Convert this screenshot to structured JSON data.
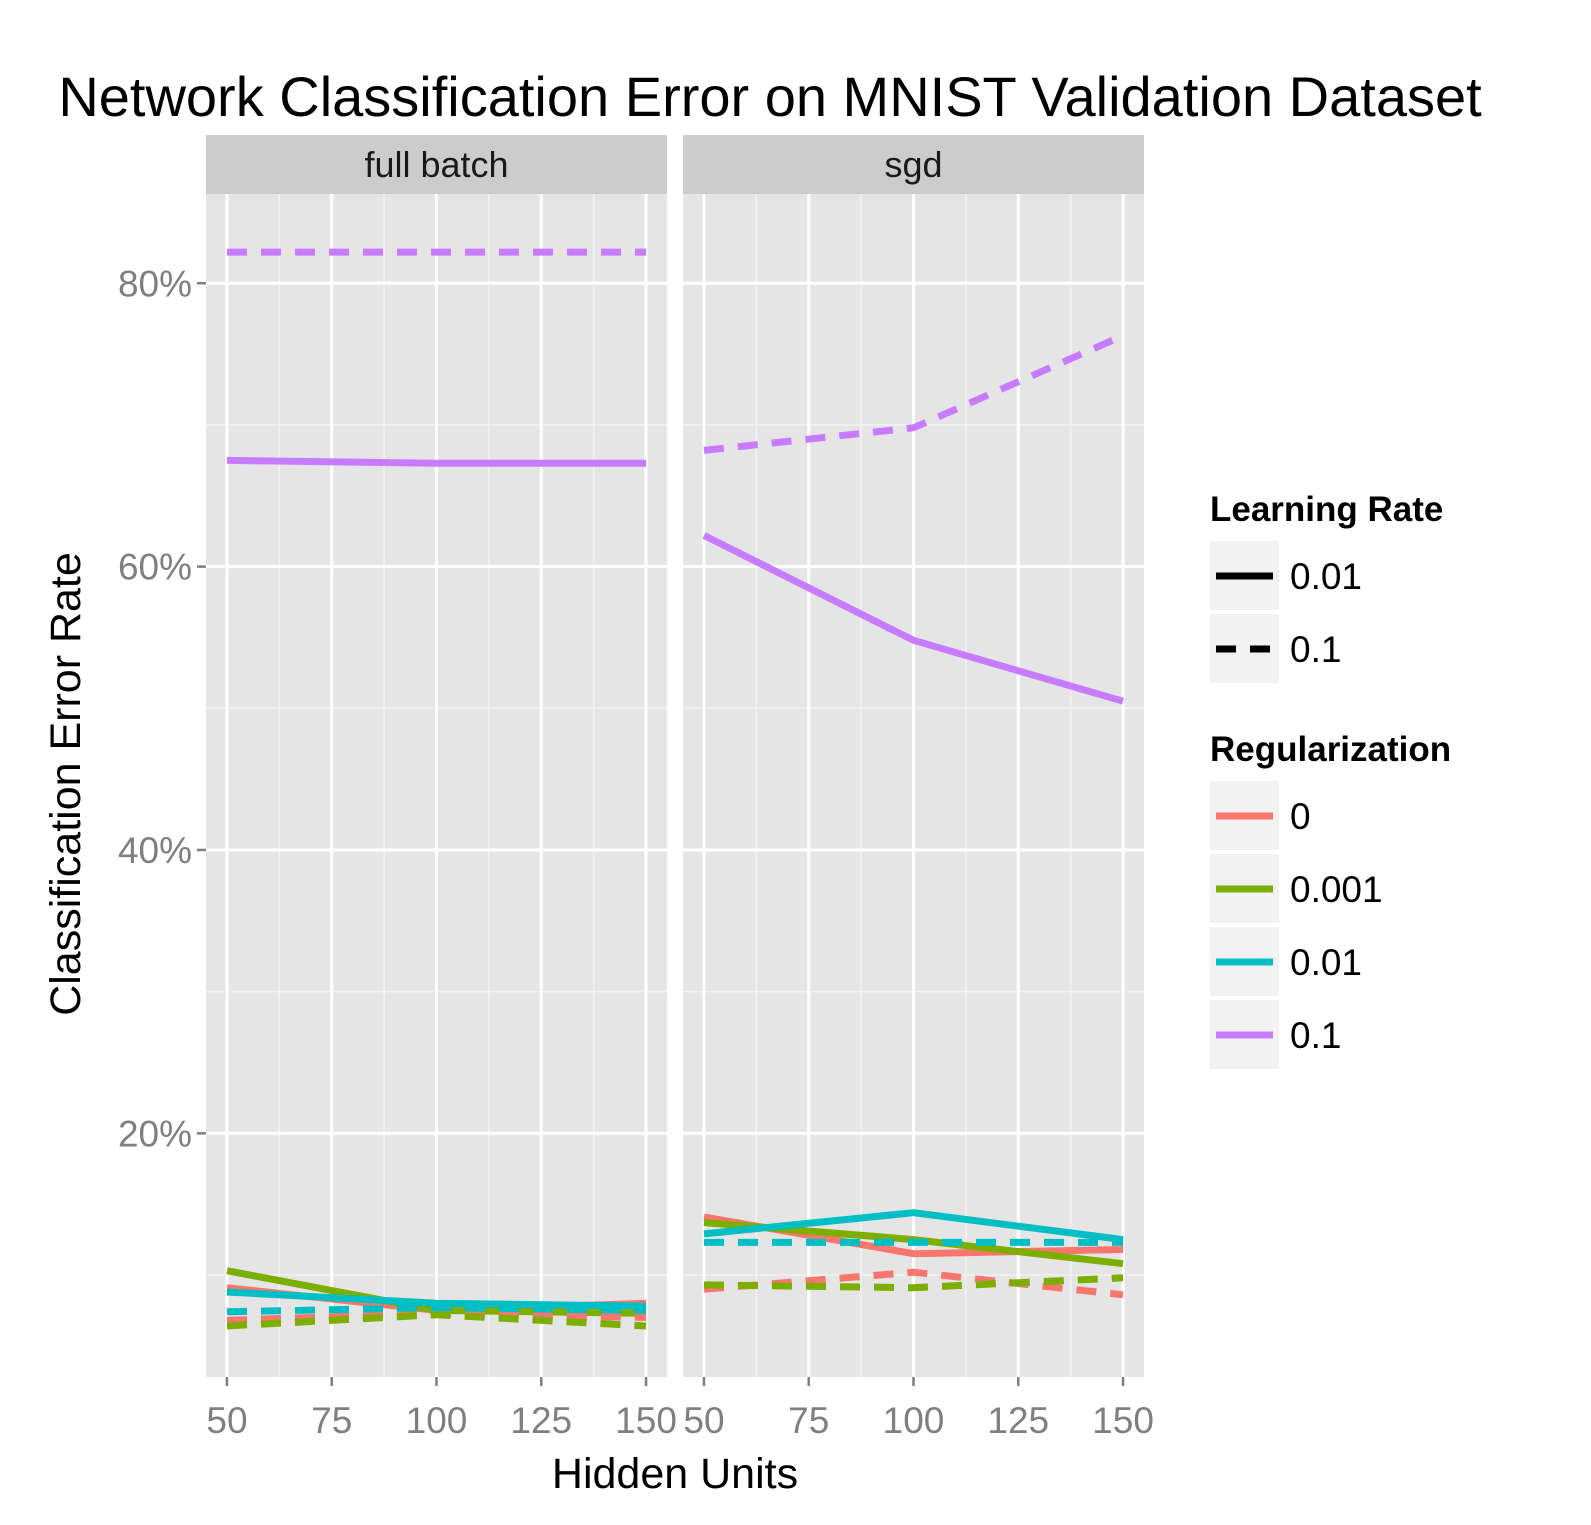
{
  "chart_data": {
    "type": "line",
    "title": "Network Classification Error on MNIST Validation Dataset",
    "xlabel": "Hidden Units",
    "ylabel": "Classification Error Rate",
    "x_ticks": [
      50,
      75,
      100,
      125,
      150
    ],
    "y_ticks": [
      0.2,
      0.4,
      0.6,
      0.8
    ],
    "y_tick_labels": [
      "20%",
      "40%",
      "60%",
      "80%"
    ],
    "ylim": [
      0.028,
      0.863
    ],
    "xlim": [
      45,
      155
    ],
    "grid": true,
    "legend_position": "right",
    "panels": [
      {
        "label": "full batch",
        "series": [
          {
            "regularization": "0",
            "learning_rate": "0.01",
            "x": [
              50,
              100,
              150
            ],
            "y": [
              0.091,
              0.075,
              0.08
            ]
          },
          {
            "regularization": "0.001",
            "learning_rate": "0.01",
            "x": [
              50,
              100,
              150
            ],
            "y": [
              0.103,
              0.075,
              0.073
            ]
          },
          {
            "regularization": "0.01",
            "learning_rate": "0.01",
            "x": [
              50,
              100,
              150
            ],
            "y": [
              0.088,
              0.08,
              0.078
            ]
          },
          {
            "regularization": "0.1",
            "learning_rate": "0.01",
            "x": [
              50,
              100,
              150
            ],
            "y": [
              0.675,
              0.673,
              0.673
            ]
          },
          {
            "regularization": "0",
            "learning_rate": "0.1",
            "x": [
              50,
              100,
              150
            ],
            "y": [
              0.068,
              0.073,
              0.07
            ]
          },
          {
            "regularization": "0.001",
            "learning_rate": "0.1",
            "x": [
              50,
              100,
              150
            ],
            "y": [
              0.064,
              0.072,
              0.064
            ]
          },
          {
            "regularization": "0.01",
            "learning_rate": "0.1",
            "x": [
              50,
              100,
              150
            ],
            "y": [
              0.074,
              0.077,
              0.075
            ]
          },
          {
            "regularization": "0.1",
            "learning_rate": "0.1",
            "x": [
              50,
              100,
              150
            ],
            "y": [
              0.822,
              0.822,
              0.822
            ]
          }
        ]
      },
      {
        "label": "sgd",
        "series": [
          {
            "regularization": "0",
            "learning_rate": "0.01",
            "x": [
              50,
              100,
              150
            ],
            "y": [
              0.141,
              0.115,
              0.118
            ]
          },
          {
            "regularization": "0.001",
            "learning_rate": "0.01",
            "x": [
              50,
              100,
              150
            ],
            "y": [
              0.137,
              0.125,
              0.108
            ]
          },
          {
            "regularization": "0.01",
            "learning_rate": "0.01",
            "x": [
              50,
              100,
              150
            ],
            "y": [
              0.129,
              0.144,
              0.125
            ]
          },
          {
            "regularization": "0.1",
            "learning_rate": "0.01",
            "x": [
              50,
              100,
              150
            ],
            "y": [
              0.622,
              0.548,
              0.505
            ]
          },
          {
            "regularization": "0",
            "learning_rate": "0.1",
            "x": [
              50,
              100,
              150
            ],
            "y": [
              0.09,
              0.102,
              0.086
            ]
          },
          {
            "regularization": "0.001",
            "learning_rate": "0.1",
            "x": [
              50,
              100,
              150
            ],
            "y": [
              0.093,
              0.091,
              0.098
            ]
          },
          {
            "regularization": "0.01",
            "learning_rate": "0.1",
            "x": [
              50,
              100,
              150
            ],
            "y": [
              0.123,
              0.123,
              0.123
            ]
          },
          {
            "regularization": "0.1",
            "learning_rate": "0.1",
            "x": [
              50,
              100,
              150
            ],
            "y": [
              0.682,
              0.698,
              0.763
            ]
          }
        ]
      }
    ],
    "legends": [
      {
        "title": "Learning Rate",
        "kind": "linetype",
        "items": [
          {
            "label": "0.01",
            "dash": "solid"
          },
          {
            "label": "0.1",
            "dash": "dashed"
          }
        ]
      },
      {
        "title": "Regularization",
        "kind": "color",
        "items": [
          {
            "label": "0",
            "color": "#F8766D"
          },
          {
            "label": "0.001",
            "color": "#7CAE00"
          },
          {
            "label": "0.01",
            "color": "#00BFC4"
          },
          {
            "label": "0.1",
            "color": "#C77CFF"
          }
        ]
      }
    ],
    "colors": {
      "panel_background": "#e5e5e5",
      "strip_background": "#cccccc",
      "grid_major": "#ffffff",
      "grid_minor": "#f2f2f2",
      "tick_label": "#7f7f7f"
    }
  }
}
